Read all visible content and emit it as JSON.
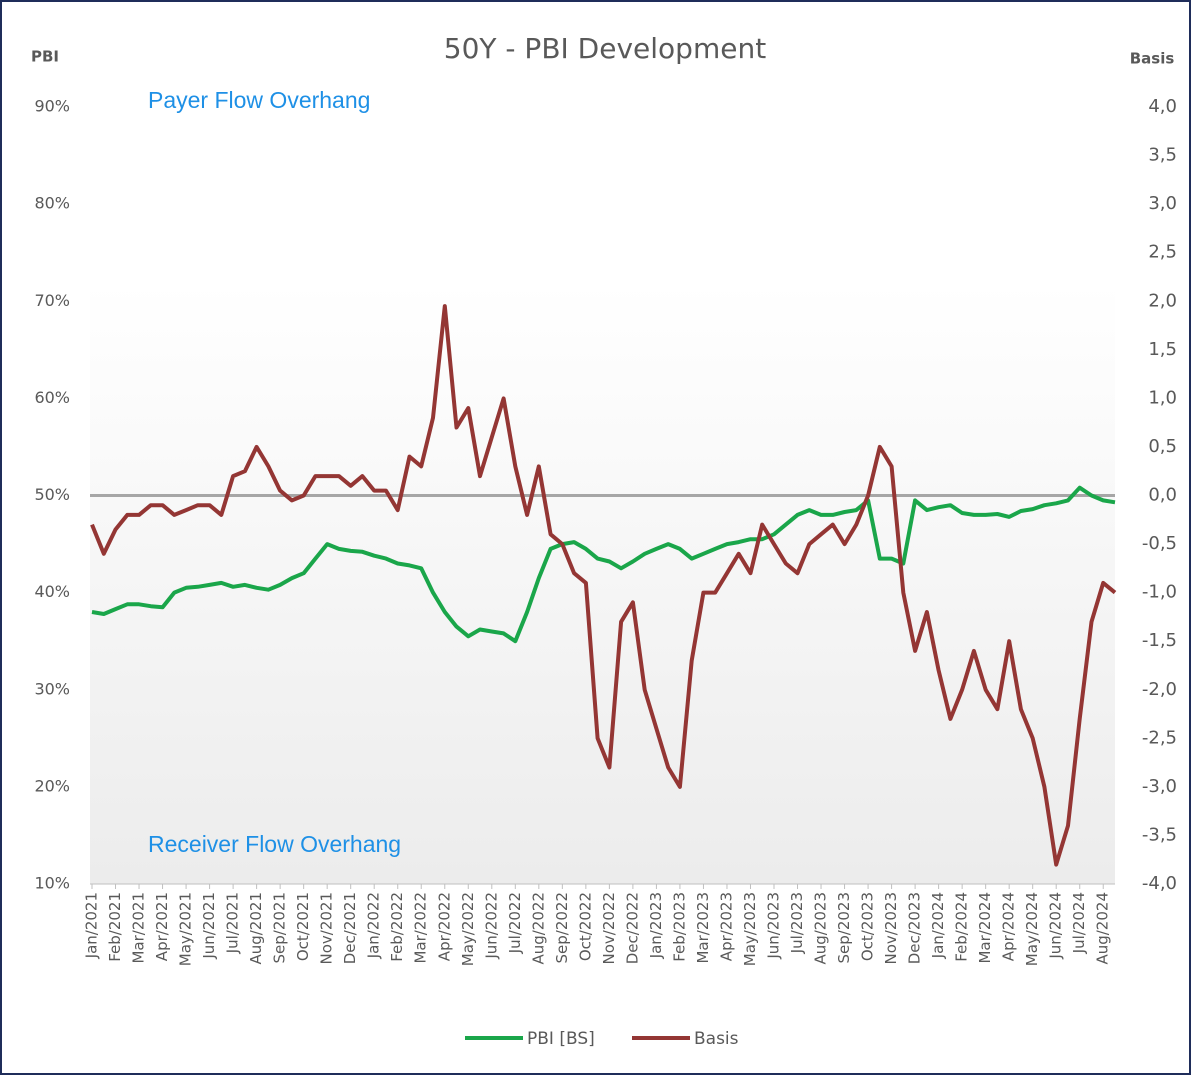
{
  "chart_data": {
    "type": "line",
    "title": "50Y - PBI Development",
    "y_label": "PBI",
    "y2_label": "Basis",
    "annotations": [
      "Payer Flow Overhang",
      "Receiver Flow Overhang"
    ],
    "categories": [
      "Jan/2021",
      null,
      "Feb/2021",
      null,
      "Mar/2021",
      null,
      "Apr/2021",
      null,
      "May/2021",
      null,
      "Jun/2021",
      null,
      "Jul/2021",
      null,
      "Aug/2021",
      null,
      "Sep/2021",
      null,
      "Oct/2021",
      null,
      "Nov/2021",
      null,
      "Dec/2021",
      null,
      "Jan/2022",
      null,
      "Feb/2022",
      null,
      "Mar/2022",
      null,
      "Apr/2022",
      null,
      "May/2022",
      null,
      "Jun/2022",
      null,
      "Jul/2022",
      null,
      "Aug/2022",
      null,
      "Sep/2022",
      null,
      "Oct/2022",
      null,
      "Nov/2022",
      null,
      "Dec/2022",
      null,
      "Jan/2023",
      null,
      "Feb/2023",
      null,
      "Mar/2023",
      null,
      "Apr/2023",
      null,
      "May/2023",
      null,
      "Jun/2023",
      null,
      "Jul/2023",
      null,
      "Aug/2023",
      null,
      "Sep/2023",
      null,
      "Oct/2023",
      null,
      "Nov/2023",
      null,
      "Dec/2023",
      null,
      "Jan/2024",
      null,
      "Feb/2024",
      null,
      "Mar/2024",
      null,
      "Apr/2024",
      null,
      "May/2024",
      null,
      "Jun/2024",
      null,
      "Jul/2024",
      null,
      "Aug/2024",
      null
    ],
    "series": [
      {
        "name": "PBI [BS]",
        "color": "#1aa64a",
        "axis": "y",
        "values": [
          38,
          37.8,
          38.3,
          38.8,
          38.8,
          38.6,
          38.5,
          40,
          40.5,
          40.6,
          40.8,
          41,
          40.6,
          40.8,
          40.5,
          40.3,
          40.8,
          41.5,
          42,
          43.5,
          45,
          44.5,
          44.3,
          44.2,
          43.8,
          43.5,
          43,
          42.8,
          42.5,
          40,
          38,
          36.5,
          35.5,
          36.2,
          36,
          35.8,
          35,
          38,
          41.5,
          44.5,
          45,
          45.2,
          44.5,
          43.5,
          43.2,
          42.5,
          43.2,
          44,
          44.5,
          45,
          44.5,
          43.5,
          44,
          44.5,
          45,
          45.2,
          45.5,
          45.5,
          46,
          47,
          48,
          48.5,
          48,
          48,
          48.3,
          48.5,
          49.5,
          43.5,
          43.5,
          43,
          49.5,
          48.5,
          48.8,
          49,
          48.2,
          48,
          48,
          48.1,
          47.8,
          48.4,
          48.6,
          49,
          49.2,
          49.5,
          50.8,
          50,
          49.5,
          49.3
        ]
      },
      {
        "name": "Basis",
        "color": "#943634",
        "axis": "y2",
        "values": [
          -0.3,
          -0.6,
          -0.35,
          -0.2,
          -0.2,
          -0.1,
          -0.1,
          -0.2,
          -0.15,
          -0.1,
          -0.1,
          -0.2,
          0.2,
          0.25,
          0.5,
          0.3,
          0.05,
          -0.05,
          0,
          0.2,
          0.2,
          0.2,
          0.1,
          0.2,
          0.05,
          0.05,
          -0.15,
          0.4,
          0.3,
          0.8,
          1.95,
          0.7,
          0.9,
          0.2,
          0.6,
          1.0,
          0.3,
          -0.2,
          0.3,
          -0.4,
          -0.5,
          -0.8,
          -0.9,
          -2.5,
          -2.8,
          -1.3,
          -1.1,
          -2.0,
          -2.4,
          -2.8,
          -3.0,
          -1.7,
          -1.0,
          -1.0,
          -0.8,
          -0.6,
          -0.8,
          -0.3,
          -0.5,
          -0.7,
          -0.8,
          -0.5,
          -0.4,
          -0.3,
          -0.5,
          -0.3,
          0,
          0.5,
          0.3,
          -1.0,
          -1.6,
          -1.2,
          -1.8,
          -2.3,
          -2.0,
          -1.6,
          -2.0,
          -2.2,
          -1.5,
          -2.2,
          -2.5,
          -3.0,
          -3.8,
          -3.4,
          -2.3,
          -1.3,
          -0.9,
          -1.0
        ]
      }
    ],
    "ylim": [
      10,
      90
    ],
    "yticks": [
      {
        "value": 10,
        "label": "10%"
      },
      {
        "value": 20,
        "label": "20%"
      },
      {
        "value": 30,
        "label": "30%"
      },
      {
        "value": 40,
        "label": "40%"
      },
      {
        "value": 50,
        "label": "50%"
      },
      {
        "value": 60,
        "label": "60%"
      },
      {
        "value": 70,
        "label": "70%"
      },
      {
        "value": 80,
        "label": "80%"
      },
      {
        "value": 90,
        "label": "90%"
      }
    ],
    "y2lim": [
      -4,
      4
    ],
    "y2ticks": [
      {
        "value": -4,
        "label": "-4,0"
      },
      {
        "value": -3.5,
        "label": "-3,5"
      },
      {
        "value": -3,
        "label": "-3,0"
      },
      {
        "value": -2.5,
        "label": "-2,5"
      },
      {
        "value": -2,
        "label": "-2,0"
      },
      {
        "value": -1.5,
        "label": "-1,5"
      },
      {
        "value": -1,
        "label": "-1,0"
      },
      {
        "value": -0.5,
        "label": "-0,5"
      },
      {
        "value": 0,
        "label": "0,0"
      },
      {
        "value": 0.5,
        "label": "0,5"
      },
      {
        "value": 1,
        "label": "1,0"
      },
      {
        "value": 1.5,
        "label": "1,5"
      },
      {
        "value": 2,
        "label": "2,0"
      },
      {
        "value": 2.5,
        "label": "2,5"
      },
      {
        "value": 3,
        "label": "3,0"
      },
      {
        "value": 3.5,
        "label": "3,5"
      },
      {
        "value": 4,
        "label": "4,0"
      }
    ],
    "legend": "bottom"
  }
}
